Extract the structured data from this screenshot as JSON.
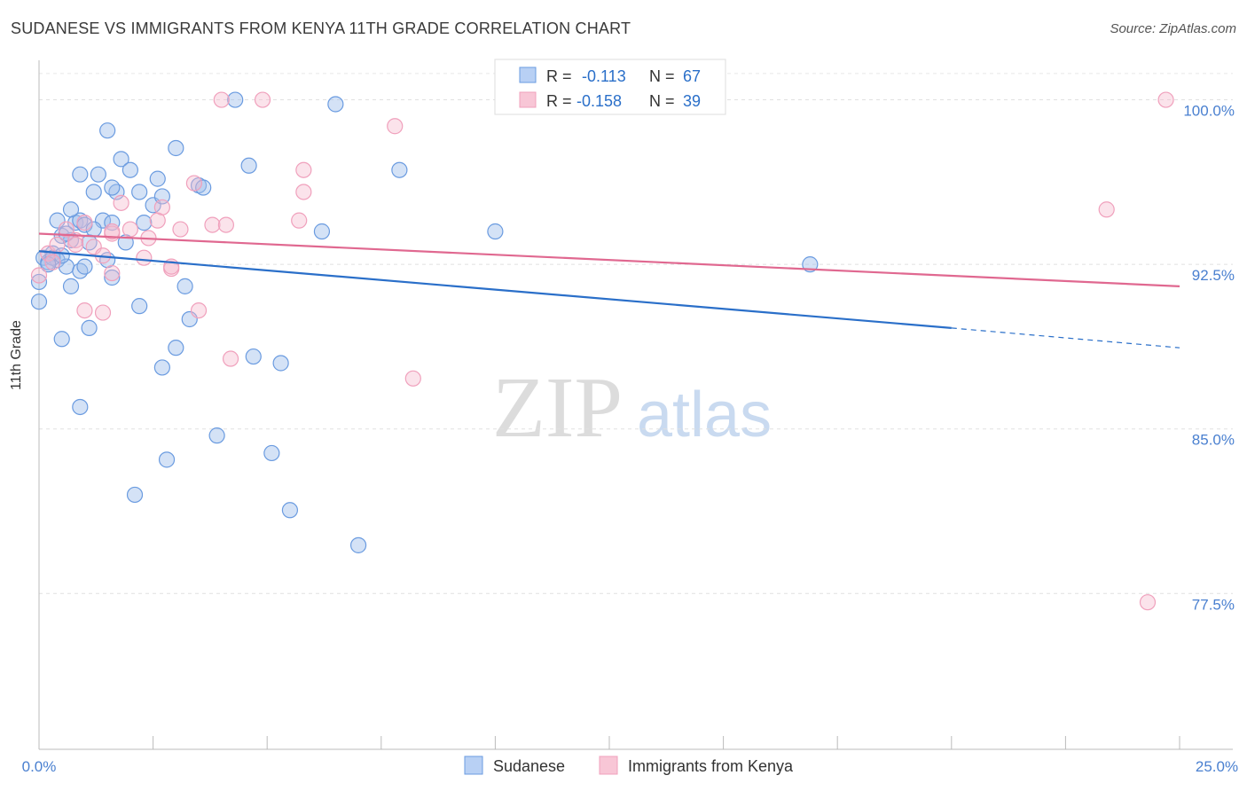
{
  "header": {
    "title": "SUDANESE VS IMMIGRANTS FROM KENYA 11TH GRADE CORRELATION CHART",
    "source": "Source: ZipAtlas.com"
  },
  "watermark": {
    "zip": "ZIP",
    "atlas": "atlas"
  },
  "chart_data": {
    "type": "scatter",
    "title": "SUDANESE VS IMMIGRANTS FROM KENYA 11TH GRADE CORRELATION CHART",
    "ylabel": "11th Grade",
    "xlabel": "",
    "xlim": [
      0,
      25
    ],
    "ylim": [
      70.4,
      101.8
    ],
    "x_tick_labels": [
      "0.0%",
      "25.0%"
    ],
    "y_ticks": [
      77.5,
      85.0,
      92.5,
      100.0
    ],
    "y_tick_labels": [
      "77.5%",
      "85.0%",
      "92.5%",
      "100.0%"
    ],
    "grid": true,
    "legend_position": "bottom",
    "colors": {
      "sudanese": "#6a9be0",
      "kenya": "#f0a0bc",
      "sudanese_line": "#2a6fc9",
      "kenya_line": "#e06890",
      "tick_label": "#4a80d0"
    },
    "stats": [
      {
        "r_label": "R =",
        "r": "-0.113",
        "n_label": "N =",
        "n": "67"
      },
      {
        "r_label": "R =",
        "r": "-0.158",
        "n_label": "N =",
        "n": "39"
      }
    ],
    "series": [
      {
        "name": "Sudanese",
        "trend": {
          "x0": 0,
          "y0": 93.1,
          "x1": 20,
          "y1": 89.6,
          "dash_to": 25,
          "dash_y": 88.7
        },
        "points": [
          [
            0.1,
            92.8
          ],
          [
            0.2,
            92.6
          ],
          [
            0.3,
            93.0
          ],
          [
            0.4,
            92.7
          ],
          [
            0.5,
            93.8
          ],
          [
            0.6,
            92.4
          ],
          [
            0.7,
            93.6
          ],
          [
            0.8,
            94.4
          ],
          [
            0.9,
            94.5
          ],
          [
            1.0,
            94.3
          ],
          [
            0.4,
            94.5
          ],
          [
            0.7,
            95.0
          ],
          [
            0.9,
            96.6
          ],
          [
            1.3,
            96.6
          ],
          [
            1.2,
            95.8
          ],
          [
            1.4,
            94.5
          ],
          [
            1.6,
            94.4
          ],
          [
            1.8,
            97.3
          ],
          [
            2.0,
            96.8
          ],
          [
            2.2,
            95.8
          ],
          [
            1.7,
            95.8
          ],
          [
            2.5,
            95.2
          ],
          [
            2.6,
            96.4
          ],
          [
            2.7,
            95.6
          ],
          [
            1.5,
            98.6
          ],
          [
            3.0,
            97.8
          ],
          [
            3.5,
            96.1
          ],
          [
            4.3,
            100.0
          ],
          [
            4.6,
            97.0
          ],
          [
            6.5,
            99.8
          ],
          [
            7.9,
            96.8
          ],
          [
            1.1,
            93.5
          ],
          [
            1.5,
            92.7
          ],
          [
            1.6,
            91.9
          ],
          [
            0.7,
            91.5
          ],
          [
            0.9,
            92.2
          ],
          [
            1.9,
            93.5
          ],
          [
            2.2,
            90.6
          ],
          [
            3.2,
            91.5
          ],
          [
            3.3,
            90.0
          ],
          [
            0.5,
            89.1
          ],
          [
            1.1,
            89.6
          ],
          [
            3.0,
            88.7
          ],
          [
            2.7,
            87.8
          ],
          [
            4.7,
            88.3
          ],
          [
            5.3,
            88.0
          ],
          [
            0.9,
            86.0
          ],
          [
            3.9,
            84.7
          ],
          [
            2.8,
            83.6
          ],
          [
            5.1,
            83.9
          ],
          [
            2.1,
            82.0
          ],
          [
            5.5,
            81.3
          ],
          [
            7.0,
            79.7
          ],
          [
            6.2,
            94.0
          ],
          [
            10.0,
            94.0
          ],
          [
            16.9,
            92.5
          ],
          [
            0.0,
            91.7
          ],
          [
            0.3,
            92.8
          ],
          [
            0.6,
            93.9
          ],
          [
            1.2,
            94.1
          ],
          [
            1.0,
            92.4
          ],
          [
            2.3,
            94.4
          ],
          [
            3.6,
            96.0
          ],
          [
            1.6,
            96.0
          ],
          [
            0.5,
            92.9
          ],
          [
            0.0,
            90.8
          ],
          [
            0.2,
            92.5
          ]
        ]
      },
      {
        "name": "Immigrants from Kenya",
        "trend": {
          "x0": 0,
          "y0": 93.9,
          "x1": 25,
          "y1": 91.5
        },
        "points": [
          [
            0.0,
            92.0
          ],
          [
            0.2,
            93.0
          ],
          [
            0.4,
            93.4
          ],
          [
            0.6,
            94.1
          ],
          [
            0.8,
            93.6
          ],
          [
            1.0,
            94.4
          ],
          [
            1.2,
            93.3
          ],
          [
            1.4,
            92.9
          ],
          [
            1.6,
            93.9
          ],
          [
            1.8,
            95.3
          ],
          [
            2.0,
            94.1
          ],
          [
            2.3,
            92.8
          ],
          [
            2.4,
            93.7
          ],
          [
            2.6,
            94.5
          ],
          [
            2.9,
            92.3
          ],
          [
            3.1,
            94.1
          ],
          [
            3.4,
            96.2
          ],
          [
            3.8,
            94.3
          ],
          [
            4.1,
            94.3
          ],
          [
            4.0,
            100.0
          ],
          [
            4.9,
            100.0
          ],
          [
            5.8,
            95.8
          ],
          [
            5.7,
            94.5
          ],
          [
            5.8,
            96.8
          ],
          [
            7.8,
            98.8
          ],
          [
            2.7,
            95.1
          ],
          [
            1.6,
            94.0
          ],
          [
            2.9,
            92.4
          ],
          [
            0.8,
            93.4
          ],
          [
            1.0,
            90.4
          ],
          [
            1.4,
            90.3
          ],
          [
            1.6,
            92.1
          ],
          [
            3.5,
            90.4
          ],
          [
            4.2,
            88.2
          ],
          [
            8.2,
            87.3
          ],
          [
            24.7,
            100.0
          ],
          [
            23.4,
            95.0
          ],
          [
            24.3,
            77.1
          ],
          [
            0.3,
            92.6
          ]
        ]
      }
    ]
  },
  "legend": {
    "items": [
      "Sudanese",
      "Immigrants from Kenya"
    ]
  }
}
